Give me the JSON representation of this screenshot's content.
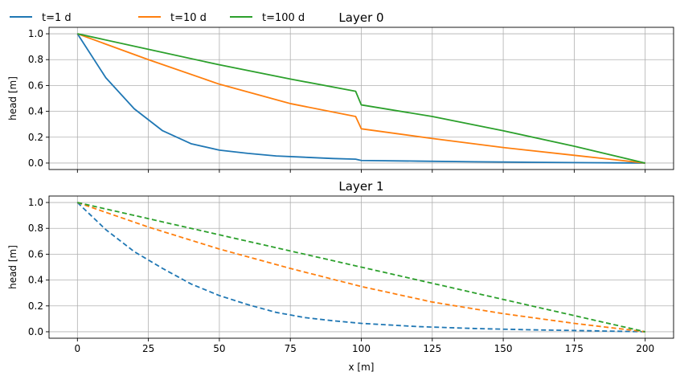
{
  "legend": [
    {
      "label": "t=1 d",
      "color": "#1f77b4"
    },
    {
      "label": "t=10 d",
      "color": "#ff7f0e"
    },
    {
      "label": "t=100 d",
      "color": "#2ca02c"
    }
  ],
  "chart_data": [
    {
      "type": "line",
      "title": "Layer 0",
      "xlabel": "",
      "ylabel": "head [m]",
      "xlim": [
        -10,
        210
      ],
      "ylim": [
        -0.05,
        1.05
      ],
      "xticks": [
        0,
        25,
        50,
        75,
        100,
        125,
        150,
        175,
        200
      ],
      "xtick_labels_visible": false,
      "yticks": [
        0.0,
        0.2,
        0.4,
        0.6,
        0.8,
        1.0
      ],
      "ytick_labels": [
        "0.0",
        "0.2",
        "0.4",
        "0.6",
        "0.8",
        "1.0"
      ],
      "grid": true,
      "line_style": "solid",
      "series": [
        {
          "name": "t=1 d",
          "color": "#1f77b4",
          "x": [
            0,
            10,
            20,
            30,
            40,
            50,
            60,
            70,
            80,
            90,
            98,
            100,
            120,
            140,
            160,
            180,
            200
          ],
          "y": [
            1.0,
            0.66,
            0.42,
            0.25,
            0.15,
            0.1,
            0.075,
            0.055,
            0.045,
            0.035,
            0.03,
            0.02,
            0.015,
            0.01,
            0.006,
            0.003,
            0.0
          ]
        },
        {
          "name": "t=10 d",
          "color": "#ff7f0e",
          "x": [
            0,
            25,
            50,
            75,
            98,
            100,
            125,
            150,
            175,
            200
          ],
          "y": [
            1.0,
            0.8,
            0.61,
            0.46,
            0.36,
            0.265,
            0.19,
            0.12,
            0.06,
            0.0
          ]
        },
        {
          "name": "t=100 d",
          "color": "#2ca02c",
          "x": [
            0,
            25,
            50,
            75,
            98,
            100,
            125,
            150,
            175,
            200
          ],
          "y": [
            1.0,
            0.88,
            0.76,
            0.65,
            0.555,
            0.45,
            0.36,
            0.25,
            0.13,
            0.0
          ]
        }
      ]
    },
    {
      "type": "line",
      "title": "Layer 1",
      "xlabel": "x [m]",
      "ylabel": "head [m]",
      "xlim": [
        -10,
        210
      ],
      "ylim": [
        -0.05,
        1.05
      ],
      "xticks": [
        0,
        25,
        50,
        75,
        100,
        125,
        150,
        175,
        200
      ],
      "xtick_labels": [
        "0",
        "25",
        "50",
        "75",
        "100",
        "125",
        "150",
        "175",
        "200"
      ],
      "xtick_labels_visible": true,
      "yticks": [
        0.0,
        0.2,
        0.4,
        0.6,
        0.8,
        1.0
      ],
      "ytick_labels": [
        "0.0",
        "0.2",
        "0.4",
        "0.6",
        "0.8",
        "1.0"
      ],
      "grid": true,
      "line_style": "dashed",
      "series": [
        {
          "name": "t=1 d",
          "color": "#1f77b4",
          "x": [
            0,
            10,
            20,
            30,
            40,
            50,
            60,
            70,
            80,
            90,
            100,
            120,
            140,
            160,
            180,
            200
          ],
          "y": [
            1.0,
            0.79,
            0.62,
            0.49,
            0.37,
            0.28,
            0.21,
            0.15,
            0.11,
            0.085,
            0.065,
            0.04,
            0.025,
            0.015,
            0.008,
            0.0
          ]
        },
        {
          "name": "t=10 d",
          "color": "#ff7f0e",
          "x": [
            0,
            25,
            50,
            75,
            100,
            125,
            150,
            175,
            200
          ],
          "y": [
            1.0,
            0.81,
            0.64,
            0.49,
            0.35,
            0.23,
            0.14,
            0.065,
            0.0
          ]
        },
        {
          "name": "t=100 d",
          "color": "#2ca02c",
          "x": [
            0,
            25,
            50,
            75,
            100,
            125,
            150,
            175,
            200
          ],
          "y": [
            1.0,
            0.875,
            0.75,
            0.625,
            0.5,
            0.375,
            0.25,
            0.125,
            0.0
          ]
        }
      ]
    }
  ]
}
